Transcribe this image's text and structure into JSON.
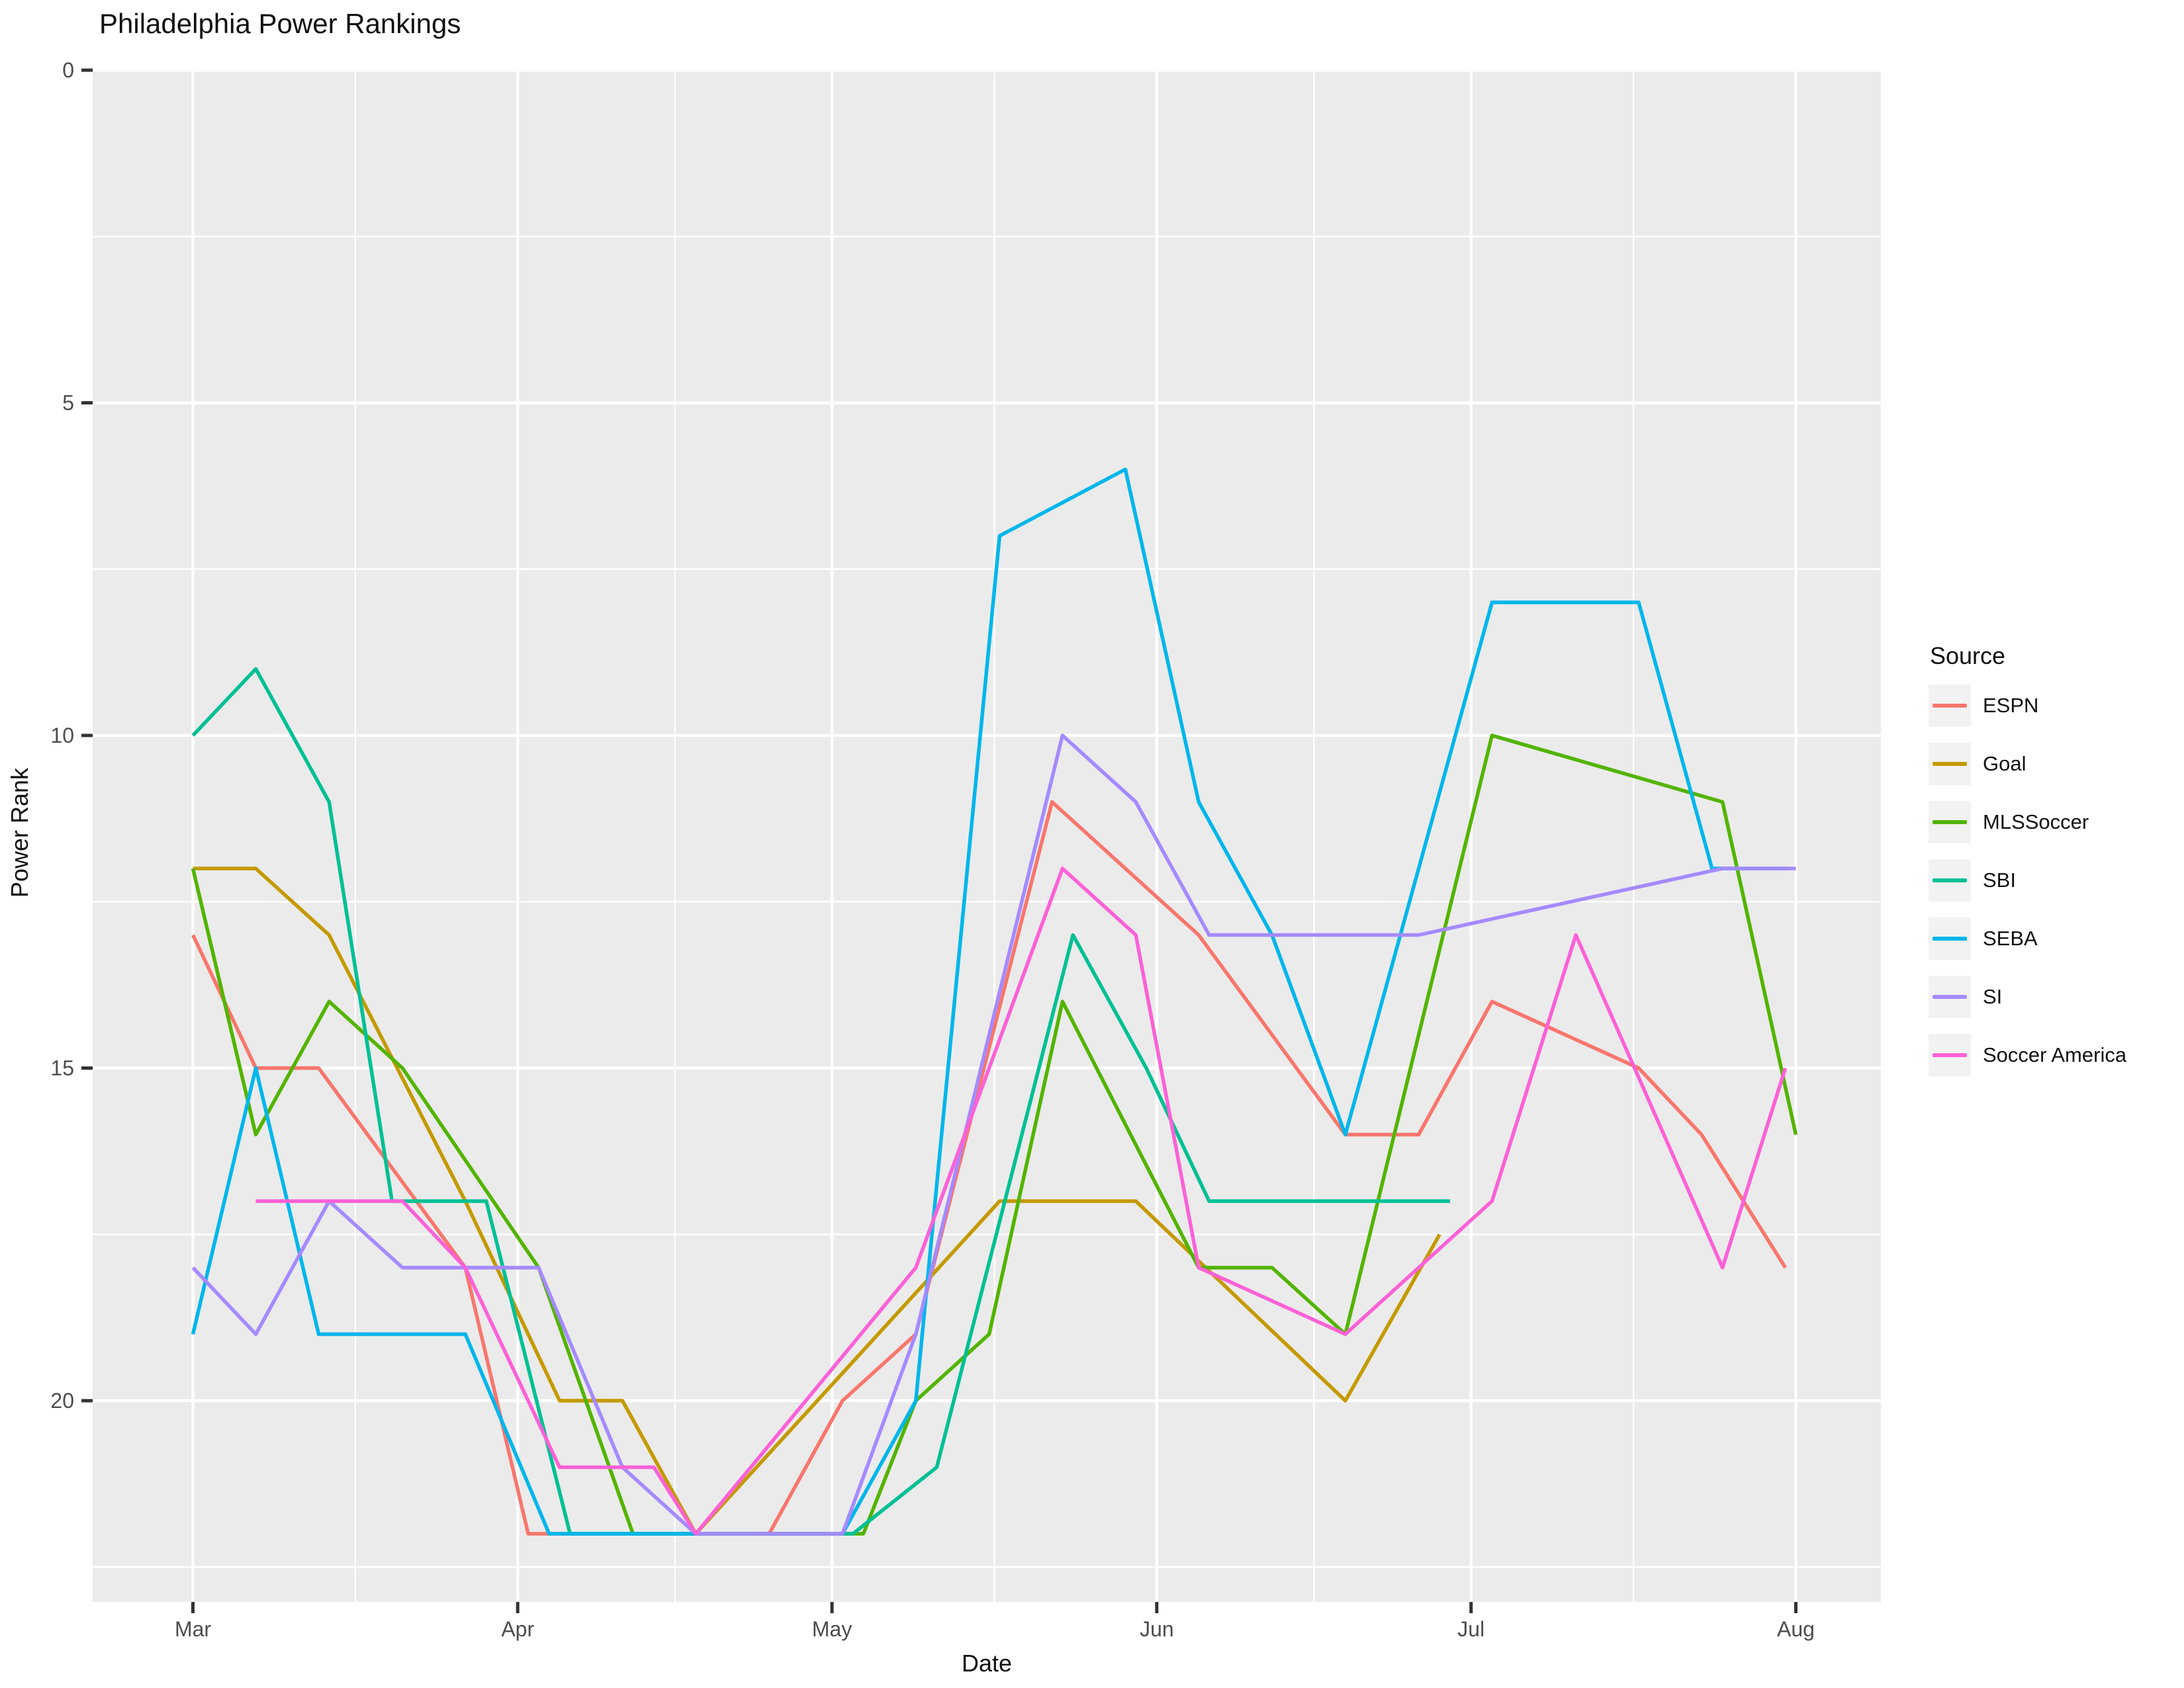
{
  "title": "Philadelphia Power Rankings",
  "x_axis": {
    "title": "Date",
    "tick_labels": [
      "Mar",
      "Apr",
      "May",
      "Jun",
      "Jul",
      "Aug"
    ]
  },
  "y_axis": {
    "title": "Power Rank",
    "tick_labels": [
      "0",
      "5",
      "10",
      "15",
      "20"
    ]
  },
  "legend": {
    "title": "Source"
  },
  "colors": {
    "panel_background": "#EBEBEB",
    "gridline": "#FFFFFF",
    "tick_mark": "#333333",
    "tick_label": "#4D4D4D",
    "legend_key_background": "#F2F2F2"
  },
  "chart_data": {
    "type": "line",
    "title": "Philadelphia Power Rankings",
    "xlabel": "Date",
    "ylabel": "Power Rank",
    "x_unit": "days since Mar 1",
    "x_month_ticks": {
      "labels": [
        "Mar",
        "Apr",
        "May",
        "Jun",
        "Jul",
        "Aug"
      ],
      "days": [
        0,
        31,
        61,
        92,
        122,
        153
      ]
    },
    "y_ticks": [
      0,
      5,
      10,
      15,
      20
    ],
    "ylim_reversed": [
      0,
      23
    ],
    "grid": "major and minor white gridlines on grey panel",
    "legend_position": "right",
    "series": [
      {
        "name": "ESPN",
        "color": "#F8766D",
        "points": [
          [
            0,
            13
          ],
          [
            6,
            15
          ],
          [
            12,
            15
          ],
          [
            26,
            18
          ],
          [
            32,
            22
          ],
          [
            55,
            22
          ],
          [
            62,
            20
          ],
          [
            69,
            19
          ],
          [
            82,
            11
          ],
          [
            96,
            13
          ],
          [
            110,
            16
          ],
          [
            117,
            16
          ],
          [
            124,
            14
          ],
          [
            138,
            15
          ],
          [
            144,
            16
          ],
          [
            152,
            18
          ]
        ]
      },
      {
        "name": "Goal",
        "color": "#C49A00",
        "points": [
          [
            0,
            12
          ],
          [
            6,
            12
          ],
          [
            13,
            13
          ],
          [
            26,
            17
          ],
          [
            35,
            20
          ],
          [
            41,
            20
          ],
          [
            48,
            22
          ],
          [
            77,
            17
          ],
          [
            90,
            17
          ],
          [
            110,
            20
          ],
          [
            119,
            17.5
          ]
        ]
      },
      {
        "name": "MLSSoccer",
        "color": "#53B400",
        "points": [
          [
            0,
            12
          ],
          [
            6,
            16
          ],
          [
            13,
            14
          ],
          [
            20,
            15
          ],
          [
            33,
            18
          ],
          [
            42,
            22
          ],
          [
            64,
            22
          ],
          [
            69,
            20
          ],
          [
            76,
            19
          ],
          [
            83,
            14
          ],
          [
            96,
            18
          ],
          [
            103,
            18
          ],
          [
            110,
            19
          ],
          [
            124,
            10
          ],
          [
            146,
            11
          ],
          [
            153,
            16
          ]
        ]
      },
      {
        "name": "SBI",
        "color": "#00C094",
        "points": [
          [
            0,
            10
          ],
          [
            6,
            9
          ],
          [
            13,
            11
          ],
          [
            19,
            17
          ],
          [
            28,
            17
          ],
          [
            36,
            22
          ],
          [
            63,
            22
          ],
          [
            71,
            21
          ],
          [
            84,
            13
          ],
          [
            91,
            15
          ],
          [
            97,
            17
          ],
          [
            120,
            17
          ]
        ]
      },
      {
        "name": "SEBA",
        "color": "#00B6EB",
        "points": [
          [
            0,
            19
          ],
          [
            6,
            15
          ],
          [
            12,
            19
          ],
          [
            26,
            19
          ],
          [
            34,
            22
          ],
          [
            62,
            22
          ],
          [
            69,
            20
          ],
          [
            77,
            7
          ],
          [
            89,
            6
          ],
          [
            96,
            11
          ],
          [
            103,
            13
          ],
          [
            110,
            16
          ],
          [
            124,
            8
          ],
          [
            138,
            8
          ],
          [
            145,
            12
          ],
          [
            152,
            12
          ]
        ]
      },
      {
        "name": "SI",
        "color": "#A58AFF",
        "points": [
          [
            0,
            18
          ],
          [
            6,
            19
          ],
          [
            13,
            17
          ],
          [
            20,
            18
          ],
          [
            33,
            18
          ],
          [
            41,
            21
          ],
          [
            48,
            22
          ],
          [
            62,
            22
          ],
          [
            69,
            19
          ],
          [
            83,
            10
          ],
          [
            90,
            11
          ],
          [
            97,
            13
          ],
          [
            117,
            13
          ],
          [
            146,
            12
          ],
          [
            153,
            12
          ]
        ]
      },
      {
        "name": "Soccer America",
        "color": "#FB61D7",
        "points": [
          [
            6,
            17
          ],
          [
            20,
            17
          ],
          [
            26,
            18
          ],
          [
            35,
            21
          ],
          [
            44,
            21
          ],
          [
            48,
            22
          ],
          [
            69,
            18
          ],
          [
            83,
            12
          ],
          [
            90,
            13
          ],
          [
            96,
            18
          ],
          [
            110,
            19
          ],
          [
            124,
            17
          ],
          [
            132,
            13
          ],
          [
            146,
            18
          ],
          [
            152,
            15
          ]
        ]
      }
    ]
  }
}
